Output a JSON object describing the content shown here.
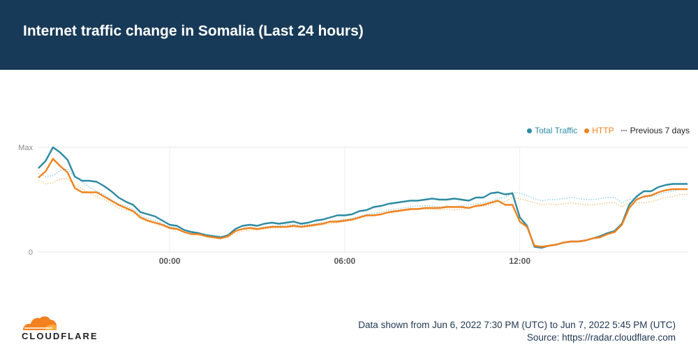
{
  "title": "Internet traffic change in Somalia (Last 24 hours)",
  "legend": {
    "items": [
      {
        "label": "Total Traffic",
        "color": "#2c8aa3"
      },
      {
        "label": "HTTP",
        "color": "#f0821e"
      },
      {
        "label": "Previous 7 days",
        "color": "#8a8a8a"
      }
    ]
  },
  "footer": {
    "range": "Data shown from Jun 6, 2022 7:30 PM (UTC) to Jun 7, 2022 5:45 PM (UTC)",
    "source": "Source: https://radar.cloudflare.com"
  },
  "brand": {
    "name": "CLOUDFLARE",
    "color": "#f48120"
  },
  "chart_data": {
    "type": "line",
    "x_unit": "hours (UTC), Jun 6 19:30 to Jun 7 17:45",
    "xlim": [
      -4.5,
      17.75
    ],
    "x_ticks": [
      {
        "value": 0,
        "label": "00:00"
      },
      {
        "value": 6,
        "label": "06:00"
      },
      {
        "value": 12,
        "label": "12:00"
      }
    ],
    "ylim": [
      0,
      100
    ],
    "y_ticks": [
      {
        "value": 0,
        "label": "0"
      },
      {
        "value": 100,
        "label": "Max"
      }
    ],
    "grid": true,
    "legend_position": "top-right",
    "series": [
      {
        "name": "Total Traffic",
        "color": "#2c8aa3",
        "style": "solid",
        "x": [
          -4.5,
          -4.25,
          -4.0,
          -3.75,
          -3.5,
          -3.25,
          -3.0,
          -2.75,
          -2.5,
          -2.25,
          -2.0,
          -1.75,
          -1.5,
          -1.25,
          -1.0,
          -0.75,
          -0.5,
          -0.25,
          0.0,
          0.25,
          0.5,
          0.75,
          1.0,
          1.25,
          1.5,
          1.75,
          2.0,
          2.25,
          2.5,
          2.75,
          3.0,
          3.25,
          3.5,
          3.75,
          4.0,
          4.25,
          4.5,
          4.75,
          5.0,
          5.25,
          5.5,
          5.75,
          6.0,
          6.25,
          6.5,
          6.75,
          7.0,
          7.25,
          7.5,
          7.75,
          8.0,
          8.25,
          8.5,
          8.75,
          9.0,
          9.25,
          9.5,
          9.75,
          10.0,
          10.25,
          10.5,
          10.75,
          11.0,
          11.25,
          11.5,
          11.75,
          12.0,
          12.25,
          12.5,
          12.75,
          13.0,
          13.25,
          13.5,
          13.75,
          14.0,
          14.25,
          14.5,
          14.75,
          15.0,
          15.25,
          15.5,
          15.75,
          16.0,
          16.25,
          16.5,
          16.75,
          17.0,
          17.25,
          17.5,
          17.75
        ],
        "y": [
          80,
          87,
          100,
          95,
          88,
          72,
          68,
          68,
          67,
          63,
          58,
          52,
          48,
          45,
          38,
          36,
          34,
          30,
          26,
          25,
          21,
          19,
          18,
          16,
          15,
          14,
          16,
          22,
          25,
          26,
          25,
          27,
          28,
          27,
          28,
          29,
          27,
          28,
          30,
          31,
          33,
          35,
          35,
          36,
          39,
          40,
          43,
          44,
          46,
          47,
          48,
          49,
          49,
          50,
          51,
          50,
          50,
          51,
          50,
          49,
          52,
          52,
          56,
          57,
          55,
          56,
          33,
          25,
          5,
          4,
          6,
          7,
          9,
          10,
          10,
          11,
          13,
          15,
          18,
          20,
          27,
          45,
          53,
          58,
          58,
          62,
          64,
          65,
          65,
          65
        ]
      },
      {
        "name": "HTTP",
        "color": "#f0821e",
        "style": "solid",
        "x": [
          -4.5,
          -4.25,
          -4.0,
          -3.75,
          -3.5,
          -3.25,
          -3.0,
          -2.75,
          -2.5,
          -2.25,
          -2.0,
          -1.75,
          -1.5,
          -1.25,
          -1.0,
          -0.75,
          -0.5,
          -0.25,
          0.0,
          0.25,
          0.5,
          0.75,
          1.0,
          1.25,
          1.5,
          1.75,
          2.0,
          2.25,
          2.5,
          2.75,
          3.0,
          3.25,
          3.5,
          3.75,
          4.0,
          4.25,
          4.5,
          4.75,
          5.0,
          5.25,
          5.5,
          5.75,
          6.0,
          6.25,
          6.5,
          6.75,
          7.0,
          7.25,
          7.5,
          7.75,
          8.0,
          8.25,
          8.5,
          8.75,
          9.0,
          9.25,
          9.5,
          9.75,
          10.0,
          10.25,
          10.5,
          10.75,
          11.0,
          11.25,
          11.5,
          11.75,
          12.0,
          12.25,
          12.5,
          12.75,
          13.0,
          13.25,
          13.5,
          13.75,
          14.0,
          14.25,
          14.5,
          14.75,
          15.0,
          15.25,
          15.5,
          15.75,
          16.0,
          16.25,
          16.5,
          16.75,
          17.0,
          17.25,
          17.5,
          17.75
        ],
        "y": [
          71,
          77,
          89,
          82,
          76,
          61,
          57,
          57,
          57,
          53,
          49,
          45,
          42,
          39,
          33,
          30,
          28,
          26,
          23,
          22,
          19,
          17,
          17,
          15,
          14,
          13,
          15,
          20,
          22,
          23,
          22,
          23,
          24,
          24,
          24,
          25,
          24,
          25,
          26,
          27,
          29,
          29,
          30,
          31,
          33,
          35,
          35,
          36,
          38,
          39,
          40,
          41,
          41,
          42,
          42,
          42,
          43,
          43,
          43,
          42,
          44,
          45,
          47,
          49,
          45,
          45,
          29,
          24,
          6,
          5,
          6,
          7,
          9,
          10,
          10,
          11,
          13,
          14,
          17,
          19,
          26,
          42,
          50,
          53,
          54,
          57,
          59,
          60,
          60,
          60
        ]
      },
      {
        "name": "Previous 7 days",
        "color": "#f6c47a",
        "style": "dotted",
        "x": [
          -4.5,
          -4.25,
          -4.0,
          -3.75,
          -3.5,
          -3.25,
          -3.0,
          -2.75,
          -2.5,
          -2.25,
          -2.0,
          -1.75,
          -1.5,
          -1.25,
          -1.0,
          -0.75,
          -0.5,
          -0.25,
          0.0,
          0.25,
          0.5,
          0.75,
          1.0,
          1.25,
          1.5,
          1.75,
          2.0,
          2.25,
          2.5,
          2.75,
          3.0,
          3.25,
          3.5,
          3.75,
          4.0,
          4.25,
          4.5,
          4.75,
          5.0,
          5.25,
          5.5,
          5.75,
          6.0,
          6.25,
          6.5,
          6.75,
          7.0,
          7.25,
          7.5,
          7.75,
          8.0,
          8.25,
          8.5,
          8.75,
          9.0,
          9.25,
          9.5,
          9.75,
          10.0,
          10.25,
          10.5,
          10.75,
          11.0,
          11.25,
          11.5,
          11.75,
          12.0,
          12.25,
          12.5,
          12.75,
          13.0,
          13.25,
          13.5,
          13.75,
          14.0,
          14.25,
          14.5,
          14.75,
          15.0,
          15.25,
          15.5,
          15.75,
          16.0,
          16.25,
          16.5,
          16.75,
          17.0,
          17.25,
          17.5,
          17.75
        ],
        "y": [
          68,
          65,
          66,
          70,
          70,
          64,
          60,
          56,
          53,
          50,
          46,
          42,
          40,
          38,
          32,
          29,
          27,
          25,
          22,
          21,
          19,
          18,
          16,
          15,
          14,
          13,
          14,
          18,
          20,
          21,
          21,
          22,
          23,
          23,
          24,
          24,
          24,
          24,
          25,
          26,
          27,
          28,
          29,
          30,
          32,
          34,
          35,
          36,
          37,
          38,
          39,
          40,
          41,
          41,
          41,
          40,
          41,
          40,
          41,
          42,
          43,
          44,
          45,
          48,
          48,
          52,
          51,
          49,
          47,
          45,
          46,
          45,
          46,
          47,
          46,
          45,
          45,
          46,
          47,
          47,
          43,
          47,
          47,
          47,
          48,
          50,
          52,
          53,
          55,
          55
        ]
      },
      {
        "name": "Previous 7 days",
        "color": "#8ecfe0",
        "style": "dotted",
        "x": [
          -4.5,
          -4.25,
          -4.0,
          -3.75,
          -3.5,
          -3.25,
          -3.0,
          -2.75,
          -2.5,
          -2.25,
          -2.0,
          -1.75,
          -1.5,
          -1.25,
          -1.0,
          -0.75,
          -0.5,
          -0.25,
          0.0,
          0.25,
          0.5,
          0.75,
          1.0,
          1.25,
          1.5,
          1.75,
          2.0,
          2.25,
          2.5,
          2.75,
          3.0,
          3.25,
          3.5,
          3.75,
          4.0,
          4.25,
          4.5,
          4.75,
          5.0,
          5.25,
          5.5,
          5.75,
          6.0,
          6.25,
          6.5,
          6.75,
          7.0,
          7.25,
          7.5,
          7.75,
          8.0,
          8.25,
          8.5,
          8.75,
          9.0,
          9.25,
          9.5,
          9.75,
          10.0,
          10.25,
          10.5,
          10.75,
          11.0,
          11.25,
          11.5,
          11.75,
          12.0,
          12.25,
          12.5,
          12.75,
          13.0,
          13.25,
          13.5,
          13.75,
          14.0,
          14.25,
          14.5,
          14.75,
          15.0,
          15.25,
          15.5,
          15.75,
          16.0,
          16.25,
          16.5,
          16.75,
          17.0,
          17.25,
          17.5,
          17.75
        ],
        "y": [
          75,
          72,
          73,
          78,
          79,
          72,
          67,
          62,
          58,
          55,
          50,
          46,
          44,
          41,
          35,
          32,
          30,
          27,
          24,
          23,
          21,
          20,
          18,
          17,
          16,
          15,
          15,
          20,
          22,
          23,
          22,
          24,
          25,
          25,
          26,
          26,
          26,
          26,
          27,
          28,
          29,
          30,
          31,
          32,
          34,
          36,
          37,
          38,
          40,
          41,
          42,
          43,
          44,
          44,
          44,
          43,
          44,
          43,
          44,
          45,
          46,
          47,
          48,
          51,
          52,
          57,
          56,
          54,
          51,
          49,
          50,
          50,
          51,
          52,
          51,
          50,
          50,
          51,
          52,
          52,
          47,
          50,
          52,
          52,
          53,
          55,
          57,
          58,
          60,
          60
        ]
      }
    ]
  }
}
